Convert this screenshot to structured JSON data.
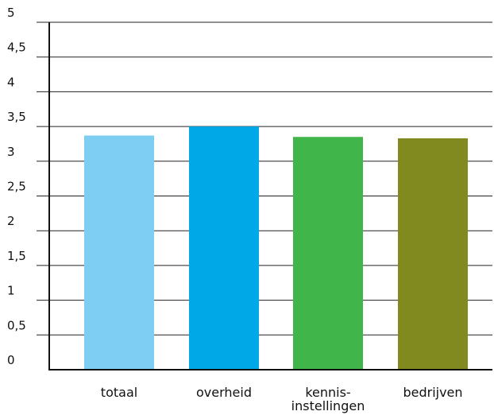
{
  "chart_data": {
    "type": "bar",
    "categories": [
      "totaal",
      "overheid",
      "kennis-\ninstellingen",
      "bedrijven"
    ],
    "values": [
      3.37,
      3.5,
      3.35,
      3.33
    ],
    "title": "",
    "xlabel": "",
    "ylabel": "",
    "ylim": [
      0,
      5
    ],
    "yticks": [
      0,
      0.5,
      1,
      1.5,
      2,
      2.5,
      3,
      3.5,
      4,
      4.5,
      5
    ],
    "ytick_labels": [
      "0",
      "0,5",
      "1",
      "1,5",
      "2",
      "2,5",
      "3",
      "3,5",
      "4",
      "4,5",
      "5"
    ],
    "grid": true,
    "legend": "none",
    "colors": [
      "#7ecef4",
      "#00a8e8",
      "#3fb54a",
      "#818a1e"
    ],
    "axis_color": "#111111",
    "grid_color": "#222222"
  }
}
